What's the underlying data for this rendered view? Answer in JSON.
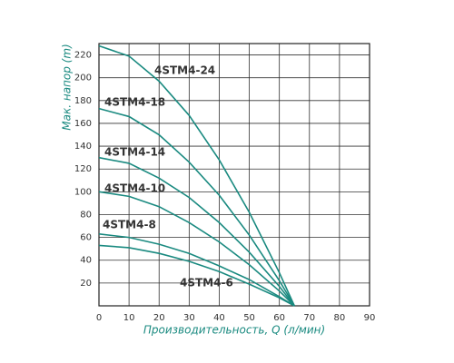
{
  "chart_data": {
    "type": "line",
    "x_label": "Производительность, Q (л/мин)",
    "y_label": "Мак. напор (m)",
    "x": [
      0,
      10,
      20,
      30,
      40,
      50,
      60,
      65
    ],
    "series": [
      {
        "name": "4STM4-24",
        "color": "#1a8a80",
        "values": [
          228,
          219,
          197,
          167,
          128,
          82,
          29,
          0
        ]
      },
      {
        "name": "4STM4-18",
        "color": "#1a8a80",
        "values": [
          173,
          166,
          150,
          126,
          97,
          62,
          22,
          0
        ]
      },
      {
        "name": "4STM4-14",
        "color": "#1a8a80",
        "values": [
          130,
          125,
          112,
          95,
          73,
          47,
          17,
          0
        ]
      },
      {
        "name": "4STM4-10",
        "color": "#1a8a80",
        "values": [
          100,
          96,
          87,
          73,
          56,
          36,
          13,
          0
        ]
      },
      {
        "name": "4STM4-8",
        "color": "#1a8a80",
        "values": [
          63,
          60,
          54,
          46,
          35,
          23,
          8,
          0
        ]
      },
      {
        "name": "4STM4-6",
        "color": "#1a8a80",
        "values": [
          53,
          51,
          46,
          39,
          30,
          19,
          7,
          0
        ]
      }
    ],
    "xlim": [
      0,
      90
    ],
    "ylim": [
      0,
      230
    ],
    "xticks": [
      0,
      10,
      20,
      30,
      40,
      50,
      60,
      70,
      80,
      90
    ],
    "yticks": [
      20,
      40,
      60,
      80,
      100,
      120,
      140,
      160,
      180,
      200,
      220
    ],
    "grid": true
  }
}
